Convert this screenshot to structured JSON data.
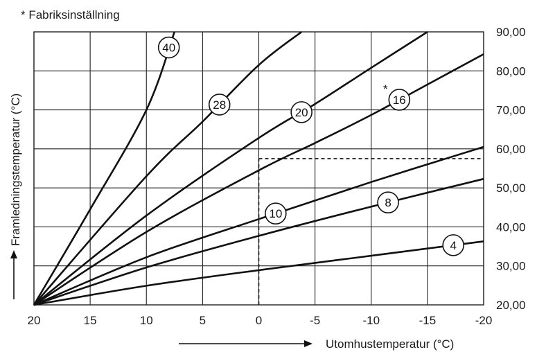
{
  "chart_data": {
    "type": "line",
    "note": "* Fabriksinställning",
    "note_star": "*",
    "xlabel": "Utomhustemperatur (°C)",
    "ylabel": "Framledningstemperatur (°C)",
    "x_ticks": [
      20,
      15,
      10,
      5,
      0,
      -5,
      -10,
      -15,
      -20
    ],
    "x_tick_labels": [
      "20",
      "15",
      "10",
      "5",
      "0",
      "-5",
      "-10",
      "-15",
      "-20"
    ],
    "y_ticks": [
      20,
      30,
      40,
      50,
      60,
      70,
      80,
      90
    ],
    "y_tick_labels": [
      "20,00",
      "30,00",
      "40,00",
      "50,00",
      "60,00",
      "70,00",
      "80,00",
      "90,00"
    ],
    "xlim": [
      20,
      -20
    ],
    "ylim": [
      20,
      90
    ],
    "grid": true,
    "factory_setting_curve": "16",
    "reference_line": {
      "x": 0,
      "y": 57.5
    },
    "series": [
      {
        "name": "4",
        "x": [
          20,
          10,
          0,
          -10,
          -20
        ],
        "y": [
          20,
          24.9,
          28.9,
          32.6,
          36.3
        ],
        "label_at": -17.3
      },
      {
        "name": "8",
        "x": [
          20,
          10,
          0,
          -10,
          -20
        ],
        "y": [
          20,
          29.6,
          37.7,
          45.2,
          52.3
        ],
        "label_at": -11.5
      },
      {
        "name": "10",
        "x": [
          20,
          10,
          0,
          -10,
          -20
        ],
        "y": [
          20,
          32.2,
          42.0,
          51.5,
          60.5
        ],
        "label_at": -1.5
      },
      {
        "name": "16",
        "x": [
          20,
          10,
          0,
          -5,
          -10,
          -15,
          -20
        ],
        "y": [
          20,
          38.7,
          54.5,
          61.5,
          68.7,
          76.5,
          84.3
        ],
        "label_at": -12.5
      },
      {
        "name": "20",
        "x": [
          20,
          10,
          0,
          -5,
          -10,
          -15
        ],
        "y": [
          20,
          42.9,
          62.8,
          71.5,
          80.8,
          90
        ],
        "label_at": -3.8
      },
      {
        "name": "28",
        "x": [
          20,
          10,
          5,
          0,
          -3.8
        ],
        "y": [
          20,
          53.0,
          67.0,
          81.5,
          90
        ],
        "label_at": 3.5
      },
      {
        "name": "40",
        "x": [
          20,
          15,
          10,
          7.5
        ],
        "y": [
          20,
          44.5,
          70.0,
          90
        ],
        "label_at": 8.0
      }
    ]
  }
}
